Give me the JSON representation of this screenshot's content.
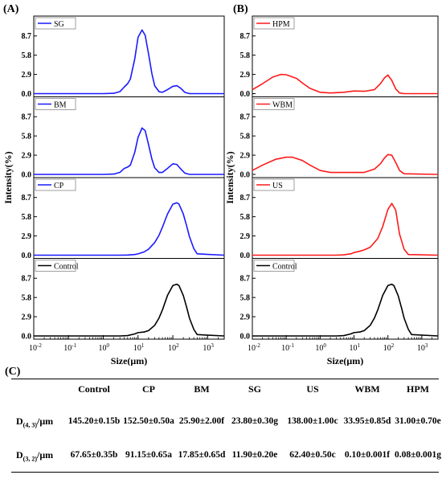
{
  "panel_labels": {
    "a": "(A)",
    "b": "(B)",
    "c": "(C)"
  },
  "chart_data": [
    {
      "type": "line",
      "panel": "(A)",
      "ylabel": "Intensity(%)",
      "xlabel": "Size(μm)",
      "x_scale": "log",
      "xlim": [
        0.01,
        3000
      ],
      "x_ticks": [
        "10-2",
        "10-1",
        "100",
        "101",
        "102",
        "103"
      ],
      "ylim": [
        0,
        10
      ],
      "y_ticks": [
        "0.0",
        "2.9",
        "5.8",
        "8.7"
      ],
      "subplots": [
        {
          "legend": "SG",
          "color": "#1a1aff",
          "x": [
            0.01,
            1,
            2,
            3,
            4,
            5,
            6,
            8,
            10,
            13,
            16,
            20,
            25,
            30,
            40,
            50,
            70,
            100,
            130,
            170,
            220,
            300,
            3000
          ],
          "y": [
            0,
            0,
            0.05,
            0.3,
            1.0,
            1.5,
            2.2,
            5.2,
            8.5,
            9.6,
            8.8,
            6.0,
            3.0,
            1.2,
            0.3,
            0.2,
            0.6,
            1.1,
            1.2,
            0.8,
            0.2,
            0,
            0
          ]
        },
        {
          "legend": "BM",
          "color": "#1a1aff",
          "x": [
            0.01,
            1,
            2,
            3,
            4,
            5,
            6,
            8,
            10,
            13,
            16,
            20,
            25,
            30,
            40,
            50,
            70,
            100,
            130,
            170,
            220,
            300,
            3000
          ],
          "y": [
            0,
            0,
            0.05,
            0.3,
            0.9,
            1.1,
            1.4,
            3.3,
            5.6,
            7.0,
            6.6,
            4.5,
            2.3,
            1.0,
            0.3,
            0.3,
            0.9,
            1.6,
            1.5,
            0.8,
            0.2,
            0,
            0
          ]
        },
        {
          "legend": "CP",
          "color": "#1a1aff",
          "x": [
            0.01,
            1,
            3,
            5,
            8,
            10,
            15,
            20,
            30,
            40,
            50,
            70,
            100,
            130,
            150,
            200,
            250,
            300,
            400,
            500,
            3000
          ],
          "y": [
            0,
            0,
            0,
            0.02,
            0.1,
            0.2,
            0.5,
            0.9,
            1.9,
            3.0,
            4.2,
            6.2,
            7.7,
            7.9,
            7.7,
            6.2,
            4.4,
            2.8,
            1.0,
            0.2,
            0
          ]
        },
        {
          "legend": "Control",
          "color": "#000000",
          "x": [
            0.01,
            1,
            3,
            5,
            8,
            10,
            15,
            20,
            30,
            40,
            50,
            70,
            100,
            130,
            150,
            200,
            250,
            300,
            400,
            500,
            3000
          ],
          "y": [
            0,
            0,
            0,
            0.05,
            0.3,
            0.5,
            0.6,
            0.8,
            1.6,
            2.7,
            3.9,
            6.1,
            7.6,
            7.8,
            7.6,
            6.1,
            4.3,
            2.7,
            1.0,
            0.2,
            0
          ]
        }
      ]
    },
    {
      "type": "line",
      "panel": "(B)",
      "ylabel": "Intensity(%)",
      "xlabel": "Size(μm)",
      "x_scale": "log",
      "xlim": [
        0.01,
        3000
      ],
      "x_ticks": [
        "10-2",
        "10-1",
        "100",
        "101",
        "102",
        "103"
      ],
      "ylim": [
        0,
        10
      ],
      "y_ticks": [
        "0.0",
        "2.9",
        "5.8",
        "8.7"
      ],
      "subplots": [
        {
          "legend": "HPM",
          "color": "#ff1a1a",
          "x": [
            0.01,
            0.02,
            0.04,
            0.07,
            0.1,
            0.2,
            0.3,
            0.5,
            1,
            2,
            5,
            10,
            20,
            40,
            60,
            80,
            100,
            130,
            170,
            220,
            300,
            3000
          ],
          "y": [
            0.6,
            1.5,
            2.5,
            2.9,
            2.85,
            2.3,
            1.6,
            0.8,
            0.2,
            0.1,
            0.2,
            0.4,
            0.35,
            0.6,
            1.5,
            2.4,
            2.8,
            2.0,
            0.7,
            0.1,
            0,
            0
          ]
        },
        {
          "legend": "WBM",
          "color": "#ff1a1a",
          "x": [
            0.01,
            0.02,
            0.05,
            0.1,
            0.15,
            0.3,
            0.5,
            1,
            2,
            5,
            10,
            20,
            40,
            60,
            80,
            100,
            130,
            170,
            220,
            300,
            3000
          ],
          "y": [
            0.6,
            1.4,
            2.3,
            2.6,
            2.6,
            2.1,
            1.4,
            0.6,
            0.3,
            0.3,
            0.3,
            0.3,
            0.8,
            1.6,
            2.5,
            3.0,
            2.9,
            1.8,
            0.6,
            0.1,
            0
          ]
        },
        {
          "legend": "US",
          "color": "#ff1a1a",
          "x": [
            0.01,
            1,
            3,
            5,
            8,
            10,
            15,
            20,
            30,
            50,
            70,
            100,
            130,
            170,
            220,
            300,
            400,
            3000
          ],
          "y": [
            0,
            0,
            0,
            0.05,
            0.2,
            0.4,
            0.6,
            0.8,
            1.2,
            2.5,
            4.3,
            6.9,
            7.8,
            6.8,
            3.2,
            0.9,
            0.1,
            0
          ]
        },
        {
          "legend": "Control",
          "color": "#000000",
          "x": [
            0.01,
            1,
            3,
            5,
            8,
            10,
            15,
            20,
            30,
            40,
            50,
            70,
            100,
            130,
            150,
            200,
            250,
            300,
            400,
            500,
            3000
          ],
          "y": [
            0,
            0,
            0,
            0.05,
            0.3,
            0.5,
            0.6,
            0.8,
            1.6,
            2.7,
            3.9,
            6.1,
            7.6,
            7.8,
            7.6,
            6.1,
            4.3,
            2.7,
            1.0,
            0.2,
            0
          ]
        }
      ]
    },
    {
      "type": "table",
      "panel": "(C)",
      "columns": [
        "Control",
        "CP",
        "BM",
        "SG",
        "US",
        "WBM",
        "HPM"
      ],
      "rows": [
        {
          "label_base": "D",
          "label_sub": "(4, 3)",
          "label_unit": "/μm",
          "cells": [
            "145.20±0.15b",
            "152.50±0.50a",
            "25.90±2.00f",
            "23.80±0.30g",
            "138.00±1.00c",
            "33.95±0.85d",
            "31.00±0.70e"
          ]
        },
        {
          "label_base": "D",
          "label_sub": "(3, 2)",
          "label_unit": "/μm",
          "cells": [
            "67.65±0.35b",
            "91.15±0.65a",
            "17.85±0.65d",
            "11.90±0.20e",
            "62.40±0.50c",
            "0.10±0.001f",
            "0.08±0.001g"
          ]
        }
      ]
    }
  ]
}
